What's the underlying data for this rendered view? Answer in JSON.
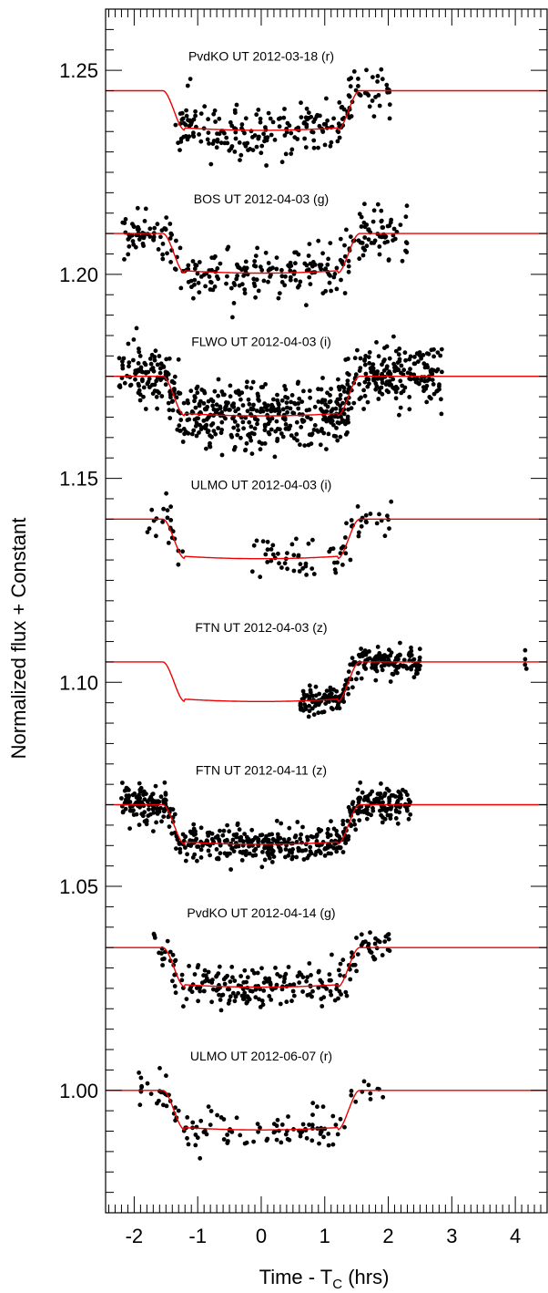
{
  "chart_data": {
    "type": "scatter",
    "title": "",
    "xlabel": "Time - T",
    "xlabel_sub": "C",
    "xlabel_unit": " (hrs)",
    "ylabel": "Normalized flux + Constant",
    "xlim": [
      -2.45,
      4.5
    ],
    "ylim": [
      0.97,
      1.265
    ],
    "x_ticks": [
      -2,
      -1,
      0,
      1,
      2,
      3,
      4
    ],
    "x_tick_labels": [
      "-2",
      "-1",
      "0",
      "1",
      "2",
      "3",
      "4"
    ],
    "y_ticks": [
      1.0,
      1.05,
      1.1,
      1.15,
      1.2,
      1.25
    ],
    "y_tick_labels": [
      "1.00",
      "1.05",
      "1.10",
      "1.15",
      "1.20",
      "1.25"
    ],
    "grid": false,
    "colors": {
      "data": "#000000",
      "model": "#ee0000",
      "axes": "#000000"
    },
    "transit_model": {
      "t1": 1.55,
      "t2": 1.2,
      "depth": 0.0097
    },
    "series": [
      {
        "name": "PvdKO UT 2012-03-18 (r)",
        "baseline": 1.245,
        "t_start": -1.35,
        "t_end": 2.05,
        "n_points": 230,
        "scatter": 0.0034,
        "seed": 11
      },
      {
        "name": "BOS UT 2012-04-03 (g)",
        "baseline": 1.21,
        "t_start": -2.2,
        "t_end": 2.3,
        "n_points": 300,
        "scatter": 0.003,
        "seed": 23
      },
      {
        "name": "FLWO UT 2012-04-03 (i)",
        "baseline": 1.175,
        "t_start": -2.25,
        "t_end": 2.85,
        "n_points": 700,
        "scatter": 0.0039,
        "seed": 37
      },
      {
        "name": "ULMO UT 2012-04-03 (i)",
        "baseline": 1.14,
        "segments": [
          [
            -1.8,
            -1.2
          ],
          [
            -0.15,
            0.85
          ],
          [
            1.05,
            2.05
          ]
        ],
        "n_points": 95,
        "scatter": 0.0027,
        "seed": 41
      },
      {
        "name": "FTN UT 2012-04-03 (z)",
        "baseline": 1.105,
        "segments": [
          [
            0.6,
            2.5
          ],
          [
            4.15,
            4.18
          ]
        ],
        "n_points": 240,
        "scatter": 0.0017,
        "seed": 53
      },
      {
        "name": "FTN UT 2012-04-11 (z)",
        "baseline": 1.07,
        "t_start": -2.2,
        "t_end": 2.35,
        "n_points": 560,
        "scatter": 0.002,
        "seed": 67
      },
      {
        "name": "PvdKO UT 2012-04-14 (g)",
        "baseline": 1.035,
        "t_start": -1.7,
        "t_end": 2.05,
        "n_points": 240,
        "scatter": 0.0024,
        "seed": 79
      },
      {
        "name": "ULMO UT 2012-06-07 (r)",
        "baseline": 1.0,
        "t_start": -1.95,
        "t_end": 1.95,
        "n_points": 125,
        "scatter": 0.0022,
        "seed": 83
      }
    ]
  }
}
